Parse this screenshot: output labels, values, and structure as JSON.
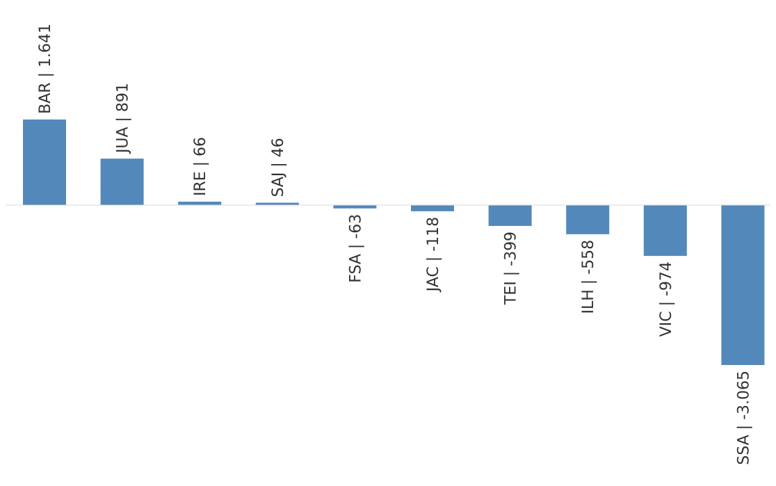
{
  "chart_data": {
    "type": "bar",
    "categories": [
      "BAR",
      "JUA",
      "IRE",
      "SAJ",
      "FSA",
      "JAC",
      "TEI",
      "ILH",
      "VIC",
      "SSA"
    ],
    "values": [
      1641,
      891,
      66,
      46,
      -63,
      -118,
      -399,
      -558,
      -974,
      -3065
    ],
    "labels": [
      "BAR | 1.641",
      "JUA | 891",
      "IRE | 66",
      "SAJ | 46",
      "FSA | -63",
      "JAC | -118",
      "TEI | -399",
      "ILH | -558",
      "VIC | -974",
      "SSA | -3.065"
    ],
    "title": "",
    "xlabel": "",
    "ylabel": "",
    "ylim": [
      -3065,
      1641
    ],
    "grid": false,
    "legend": "none",
    "colors": {
      "bar": "#5389BA",
      "axis": "#D9D9D9",
      "label": "#333333"
    }
  }
}
